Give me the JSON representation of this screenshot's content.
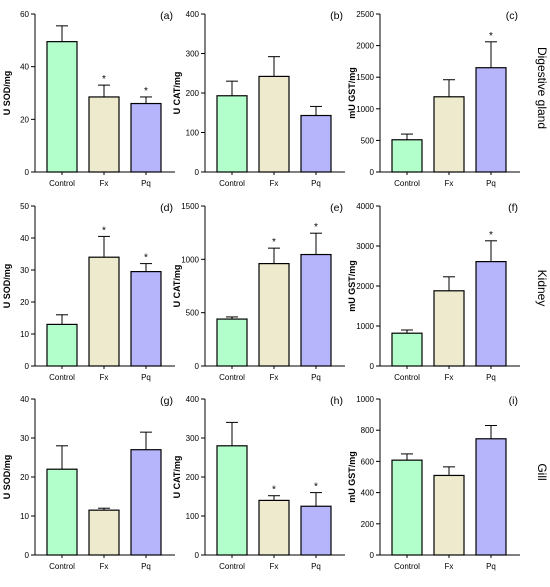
{
  "figure": {
    "row_labels": [
      "Digestive gland",
      "Kidney",
      "Gill"
    ],
    "colors": {
      "Control": "#b3ffcc",
      "Fx": "#eeeacd",
      "Pq": "#b6b5fb"
    }
  },
  "chart_data": [
    {
      "panel": "(a)",
      "type": "bar",
      "categories": [
        "Control",
        "Fx",
        "Pq"
      ],
      "values": [
        49.5,
        28.5,
        26
      ],
      "errors": [
        6,
        4.5,
        2.5
      ],
      "significant": [
        false,
        true,
        true
      ],
      "ylabel": "U SOD/mg",
      "ylim": [
        0,
        60
      ],
      "yticks": [
        0,
        20,
        40,
        60
      ]
    },
    {
      "panel": "(b)",
      "type": "bar",
      "categories": [
        "Control",
        "Fx",
        "Pq"
      ],
      "values": [
        193,
        242,
        143
      ],
      "errors": [
        37,
        50,
        23
      ],
      "significant": [
        false,
        false,
        false
      ],
      "ylabel": "U CAT/mg",
      "ylim": [
        0,
        400
      ],
      "yticks": [
        0,
        100,
        200,
        300,
        400
      ]
    },
    {
      "panel": "(c)",
      "type": "bar",
      "categories": [
        "Control",
        "Fx",
        "Pq"
      ],
      "values": [
        510,
        1190,
        1650
      ],
      "errors": [
        90,
        270,
        410
      ],
      "significant": [
        false,
        false,
        true
      ],
      "ylabel": "mU GST/mg",
      "ylim": [
        0,
        2500
      ],
      "yticks": [
        0,
        500,
        1000,
        1500,
        2000,
        2500
      ]
    },
    {
      "panel": "(d)",
      "type": "bar",
      "categories": [
        "Control",
        "Fx",
        "Pq"
      ],
      "values": [
        13,
        34,
        29.5
      ],
      "errors": [
        3,
        6.5,
        2.5
      ],
      "significant": [
        false,
        true,
        true
      ],
      "ylabel": "U SOD/mg",
      "ylim": [
        0,
        50
      ],
      "yticks": [
        0,
        10,
        20,
        30,
        40,
        50
      ]
    },
    {
      "panel": "(e)",
      "type": "bar",
      "categories": [
        "Control",
        "Fx",
        "Pq"
      ],
      "values": [
        440,
        960,
        1045
      ],
      "errors": [
        20,
        145,
        200
      ],
      "significant": [
        false,
        true,
        true
      ],
      "ylabel": "U CAT/mg",
      "ylim": [
        0,
        1500
      ],
      "yticks": [
        0,
        500,
        1000,
        1500
      ]
    },
    {
      "panel": "(f)",
      "type": "bar",
      "categories": [
        "Control",
        "Fx",
        "Pq"
      ],
      "values": [
        820,
        1880,
        2610
      ],
      "errors": [
        80,
        350,
        520
      ],
      "significant": [
        false,
        false,
        true
      ],
      "ylabel": "mU GST/mg",
      "ylim": [
        0,
        4000
      ],
      "yticks": [
        0,
        1000,
        2000,
        3000,
        4000
      ]
    },
    {
      "panel": "(g)",
      "type": "bar",
      "categories": [
        "Control",
        "Fx",
        "Pq"
      ],
      "values": [
        22,
        11.5,
        27
      ],
      "errors": [
        6,
        0.5,
        4.5
      ],
      "significant": [
        false,
        false,
        false
      ],
      "ylabel": "U SOD/mg",
      "ylim": [
        0,
        40
      ],
      "yticks": [
        0,
        10,
        20,
        30,
        40
      ]
    },
    {
      "panel": "(h)",
      "type": "bar",
      "categories": [
        "Control",
        "Fx",
        "Pq"
      ],
      "values": [
        280,
        140,
        125
      ],
      "errors": [
        60,
        12,
        35
      ],
      "significant": [
        false,
        true,
        true
      ],
      "ylabel": "U CAT/mg",
      "ylim": [
        0,
        400
      ],
      "yticks": [
        0,
        100,
        200,
        300,
        400
      ]
    },
    {
      "panel": "(i)",
      "type": "bar",
      "categories": [
        "Control",
        "Fx",
        "Pq"
      ],
      "values": [
        608,
        510,
        745
      ],
      "errors": [
        40,
        55,
        85
      ],
      "significant": [
        false,
        false,
        false
      ],
      "ylabel": "mU GST/mg",
      "ylim": [
        0,
        1000
      ],
      "yticks": [
        0,
        200,
        400,
        600,
        800,
        1000
      ]
    }
  ]
}
